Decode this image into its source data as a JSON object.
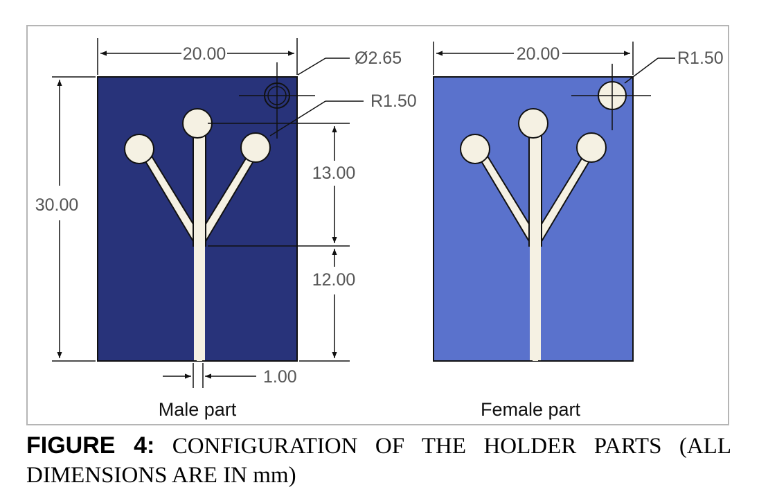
{
  "colors": {
    "male_fill": "#28337a",
    "female_fill": "#5a72cc",
    "slot_fill": "#f5f1e3",
    "line": "#111111"
  },
  "male": {
    "label": "Male part",
    "dims": {
      "width": "20.00",
      "height": "30.00",
      "hole_diameter": "Ø2.65",
      "end_radius": "R1.50",
      "branch_length": "13.00",
      "stem_length": "12.00",
      "slot_width": "1.00"
    }
  },
  "female": {
    "label": "Female part",
    "dims": {
      "width": "20.00",
      "end_radius": "R1.50"
    }
  },
  "caption": {
    "label": "FIGURE 4:",
    "text": " CONFIGURATION OF THE HOLDER PARTS (ALL DIMENSIONS ARE IN mm)"
  }
}
